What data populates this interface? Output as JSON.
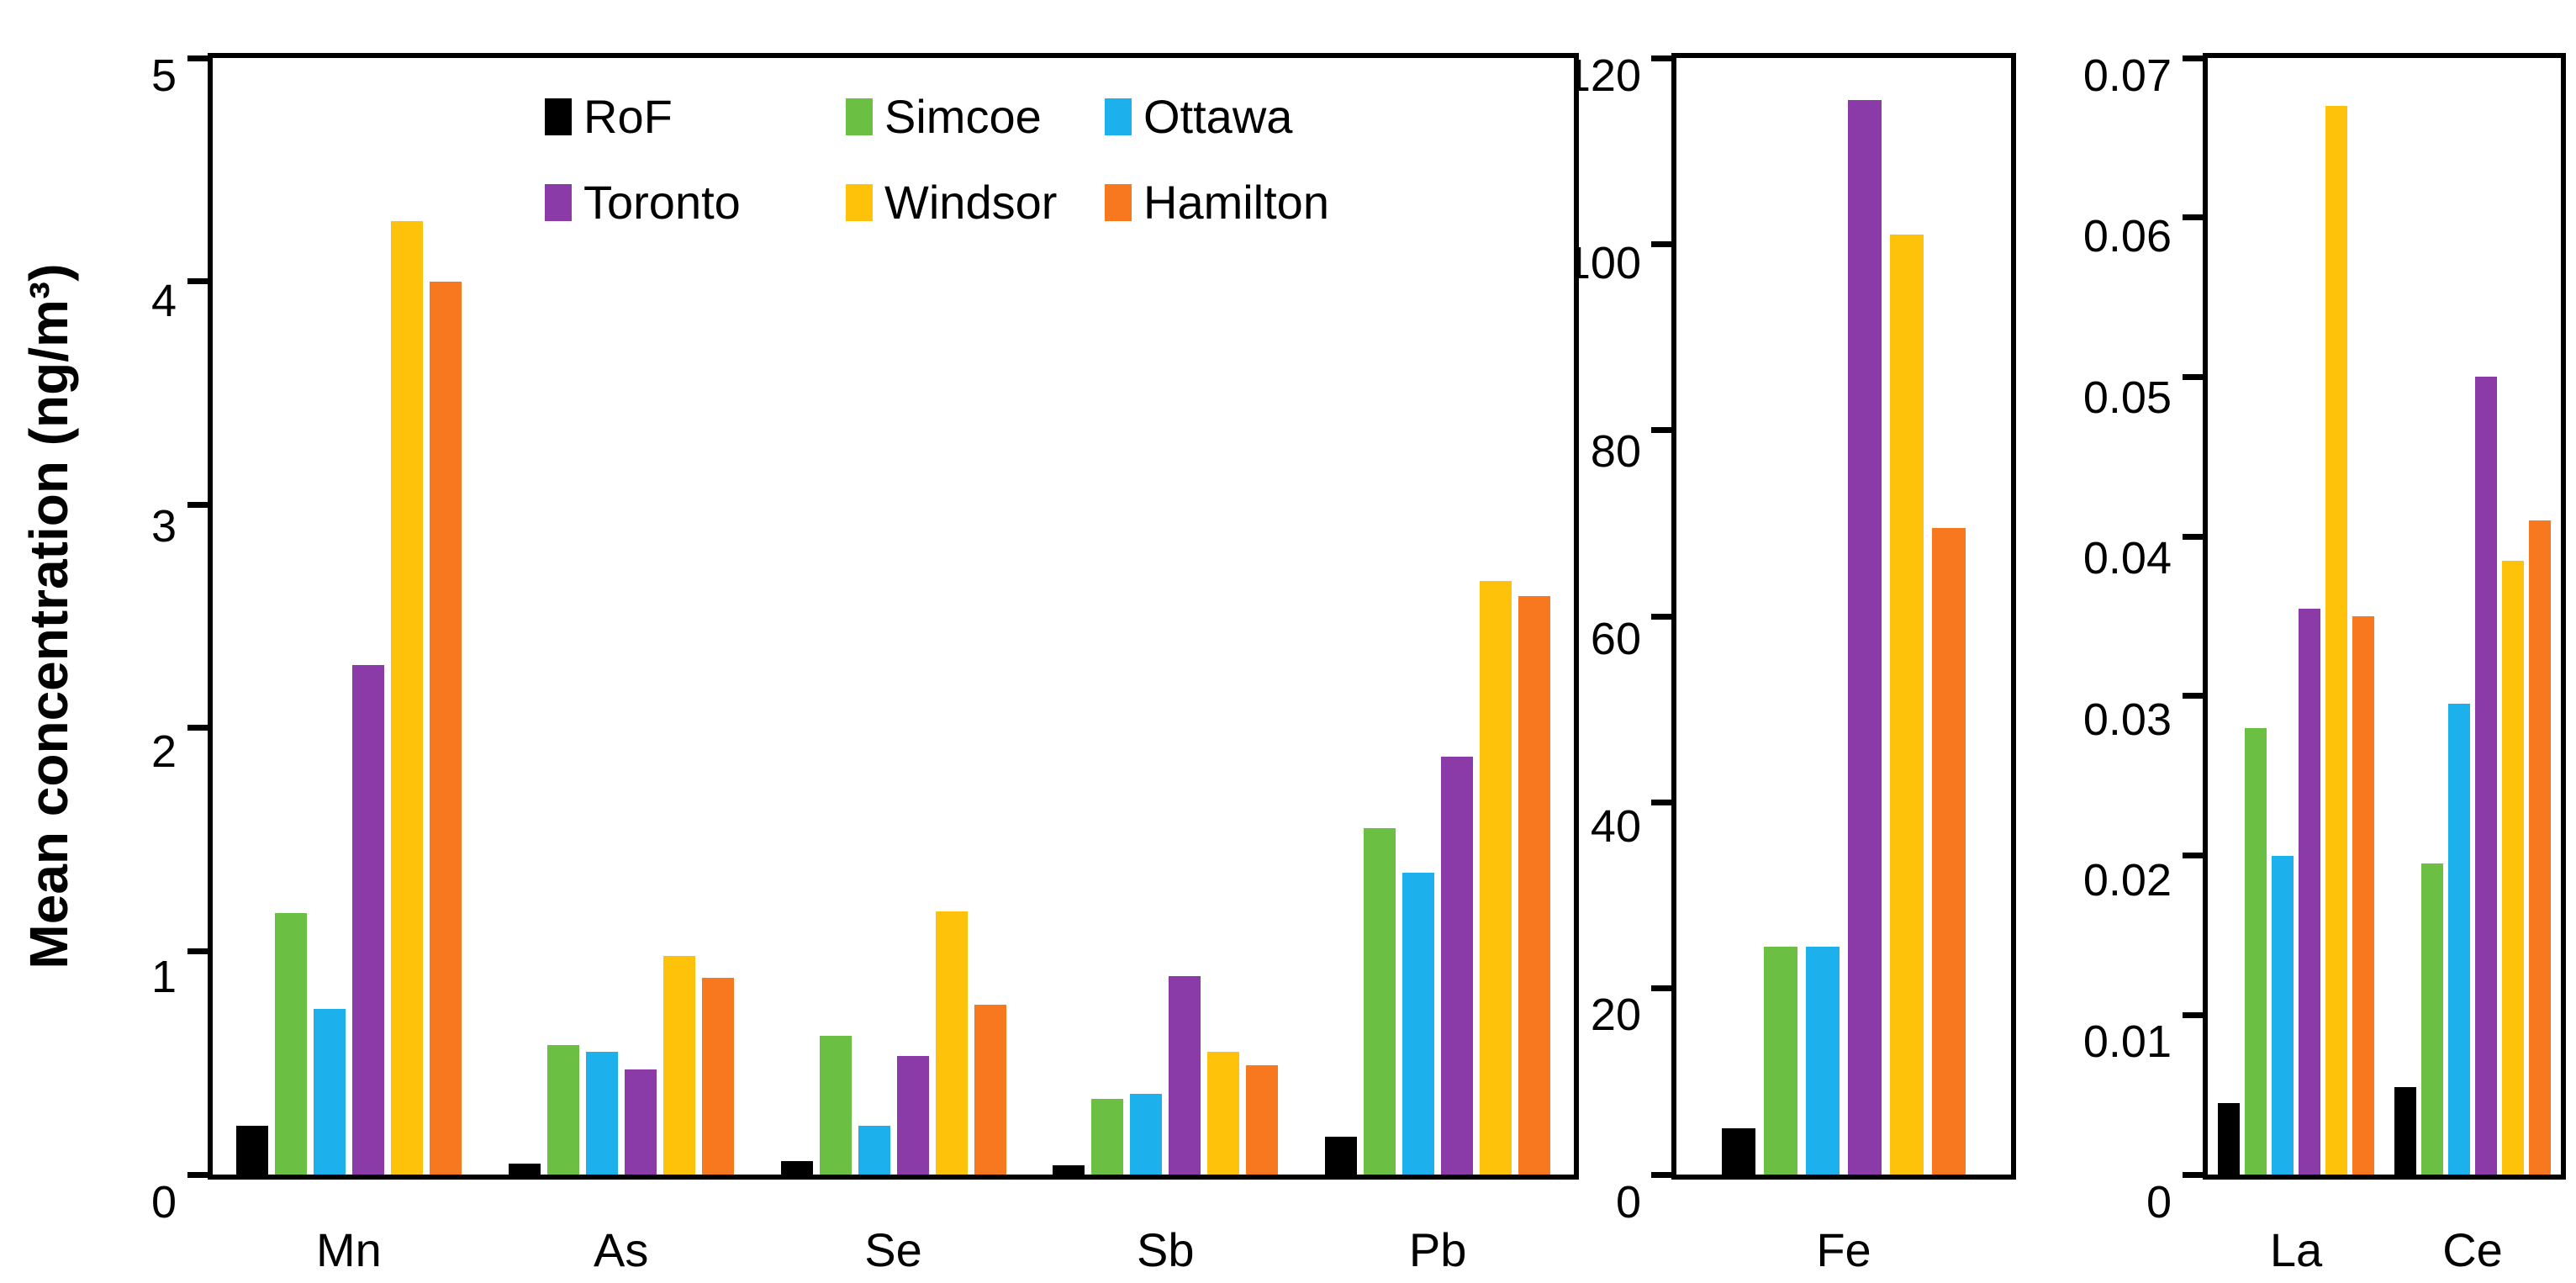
{
  "figure": {
    "ylabel": "Mean concentration (ng/m³)"
  },
  "legend": {
    "items": [
      {
        "label": "RoF",
        "color": "#000000"
      },
      {
        "label": "Simcoe",
        "color": "#6BC043"
      },
      {
        "label": "Ottawa",
        "color": "#1CB0EC"
      },
      {
        "label": "Toronto",
        "color": "#8A3BA8"
      },
      {
        "label": "Windsor",
        "color": "#FFC20A"
      },
      {
        "label": "Hamilton",
        "color": "#F8781F"
      }
    ]
  },
  "chart_data": [
    {
      "type": "bar",
      "title": "",
      "categories": [
        "Mn",
        "As",
        "Se",
        "Sb",
        "Pb"
      ],
      "ylim": [
        0,
        5
      ],
      "yticks": [
        0,
        1,
        2,
        3,
        4,
        5
      ],
      "ytick_labels": [
        "0",
        "1",
        "2",
        "3",
        "4",
        "5"
      ],
      "ylabel": "Mean concentration (ng/m³)",
      "grid": false,
      "legend_position": "inside-top-left",
      "series": [
        {
          "name": "RoF",
          "color": "#000000",
          "values": [
            0.22,
            0.05,
            0.06,
            0.04,
            0.17
          ]
        },
        {
          "name": "Simcoe",
          "color": "#6BC043",
          "values": [
            1.17,
            0.58,
            0.62,
            0.34,
            1.55
          ]
        },
        {
          "name": "Ottawa",
          "color": "#1CB0EC",
          "values": [
            0.74,
            0.55,
            0.22,
            0.36,
            1.35
          ]
        },
        {
          "name": "Toronto",
          "color": "#8A3BA8",
          "values": [
            2.28,
            0.47,
            0.53,
            0.89,
            1.87
          ]
        },
        {
          "name": "Windsor",
          "color": "#FFC20A",
          "values": [
            4.27,
            0.98,
            1.18,
            0.55,
            2.66
          ]
        },
        {
          "name": "Hamilton",
          "color": "#F8781F",
          "values": [
            4.0,
            0.88,
            0.76,
            0.49,
            2.59
          ]
        }
      ]
    },
    {
      "type": "bar",
      "title": "",
      "categories": [
        "Fe"
      ],
      "ylim": [
        0,
        120
      ],
      "yticks": [
        0,
        20,
        40,
        60,
        80,
        100,
        120
      ],
      "ytick_labels": [
        "0",
        "20",
        "40",
        "60",
        "80",
        "100",
        "120"
      ],
      "grid": false,
      "series": [
        {
          "name": "RoF",
          "color": "#000000",
          "values": [
            5
          ]
        },
        {
          "name": "Simcoe",
          "color": "#6BC043",
          "values": [
            24.5
          ]
        },
        {
          "name": "Ottawa",
          "color": "#1CB0EC",
          "values": [
            24.5
          ]
        },
        {
          "name": "Toronto",
          "color": "#8A3BA8",
          "values": [
            115.5
          ]
        },
        {
          "name": "Windsor",
          "color": "#FFC20A",
          "values": [
            101
          ]
        },
        {
          "name": "Hamilton",
          "color": "#F8781F",
          "values": [
            69.5
          ]
        }
      ]
    },
    {
      "type": "bar",
      "title": "",
      "categories": [
        "La",
        "Ce"
      ],
      "ylim": [
        0,
        0.07
      ],
      "yticks": [
        0,
        0.01,
        0.02,
        0.03,
        0.04,
        0.05,
        0.06,
        0.07
      ],
      "ytick_labels": [
        "0",
        "0.01",
        "0.02",
        "0.03",
        "0.04",
        "0.05",
        "0.06",
        "0.07"
      ],
      "grid": false,
      "series": [
        {
          "name": "RoF",
          "color": "#000000",
          "values": [
            0.0045,
            0.0055
          ]
        },
        {
          "name": "Simcoe",
          "color": "#6BC043",
          "values": [
            0.028,
            0.0195
          ]
        },
        {
          "name": "Ottawa",
          "color": "#1CB0EC",
          "values": [
            0.02,
            0.0295
          ]
        },
        {
          "name": "Toronto",
          "color": "#8A3BA8",
          "values": [
            0.0355,
            0.05
          ]
        },
        {
          "name": "Windsor",
          "color": "#FFC20A",
          "values": [
            0.067,
            0.0385
          ]
        },
        {
          "name": "Hamilton",
          "color": "#F8781F",
          "values": [
            0.035,
            0.041
          ]
        }
      ]
    }
  ]
}
